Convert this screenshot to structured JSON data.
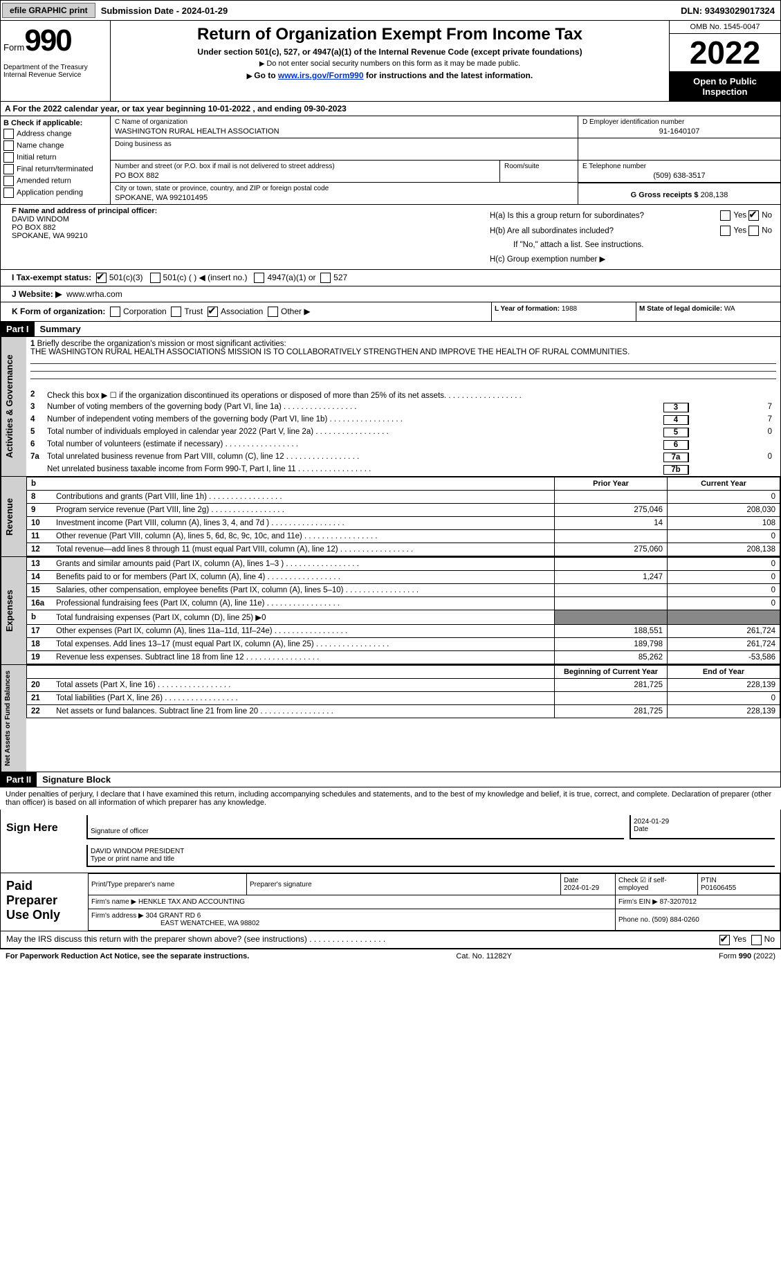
{
  "topbar": {
    "efile": "efile GRAPHIC print",
    "subdate_lbl": "Submission Date - ",
    "subdate": "2024-01-29",
    "dln_lbl": "DLN: ",
    "dln": "93493029017324"
  },
  "hdr": {
    "form": "Form",
    "n990": "990",
    "dept": "Department of the Treasury Internal Revenue Service",
    "title": "Return of Organization Exempt From Income Tax",
    "sub": "Under section 501(c), 527, or 4947(a)(1) of the Internal Revenue Code (except private foundations)",
    "note1": "Do not enter social security numbers on this form as it may be made public.",
    "note2": "Go to ",
    "link": "www.irs.gov/Form990",
    "note3": " for instructions and the latest information.",
    "omb": "OMB No. 1545-0047",
    "year": "2022",
    "pub": "Open to Public Inspection"
  },
  "rowA": {
    "pre": "A For the 2022 calendar year, or tax year beginning ",
    "beg": "10-01-2022",
    "mid": " , and ending ",
    "end": "09-30-2023"
  },
  "colB": {
    "hd": "B Check if applicable:",
    "items": [
      "Address change",
      "Name change",
      "Initial return",
      "Final return/terminated",
      "Amended return",
      "Application pending"
    ]
  },
  "colC": {
    "name_lbl": "C Name of organization",
    "name": "WASHINGTON RURAL HEALTH ASSOCIATION",
    "dba_lbl": "Doing business as",
    "addr_lbl": "Number and street (or P.O. box if mail is not delivered to street address)",
    "room_lbl": "Room/suite",
    "addr": "PO BOX 882",
    "city_lbl": "City or town, state or province, country, and ZIP or foreign postal code",
    "city": "SPOKANE, WA  992101495"
  },
  "colD": {
    "ein_lbl": "D Employer identification number",
    "ein": "91-1640107",
    "tel_lbl": "E Telephone number",
    "tel": "(509) 638-3517",
    "gross_lbl": "G Gross receipts $ ",
    "gross": "208,138"
  },
  "colF": {
    "lbl": "F Name and address of principal officer:",
    "name": "DAVID WINDOM",
    "addr": "PO BOX 882",
    "city": "SPOKANE, WA  99210"
  },
  "colH": {
    "a": "H(a)  Is this a group return for subordinates?",
    "b": "H(b)  Are all subordinates included?",
    "bnote": "If \"No,\" attach a list. See instructions.",
    "c": "H(c)  Group exemption number ▶",
    "yes": "Yes",
    "no": "No"
  },
  "rowI": {
    "lbl": "I  Tax-exempt status:",
    "o1": "501(c)(3)",
    "o2": "501(c) (  ) ◀ (insert no.)",
    "o3": "4947(a)(1) or",
    "o4": "527"
  },
  "rowJ": {
    "lbl": "J  Website: ▶",
    "val": "www.wrha.com"
  },
  "rowK": {
    "lbl": "K Form of organization:",
    "o1": "Corporation",
    "o2": "Trust",
    "o3": "Association",
    "o4": "Other ▶"
  },
  "rowL": {
    "lbl": "L Year of formation: ",
    "val": "1988"
  },
  "rowM": {
    "lbl": "M State of legal domicile: ",
    "val": "WA"
  },
  "part1": {
    "tag": "Part I",
    "title": "Summary"
  },
  "s1": {
    "num": "1",
    "lbl": "Briefly describe the organization's mission or most significant activities:",
    "txt": "THE WASHINGTON RURAL HEALTH ASSOCIATIONS MISSION IS TO COLLABORATIVELY STRENGTHEN AND IMPROVE THE HEALTH OF RURAL COMMUNITIES."
  },
  "act": {
    "tab": "Activities & Governance",
    "rows": [
      {
        "n": "2",
        "t": "Check this box ▶ ☐ if the organization discontinued its operations or disposed of more than 25% of its net assets."
      },
      {
        "n": "3",
        "t": "Number of voting members of the governing body (Part VI, line 1a)",
        "box": "3",
        "v": "7"
      },
      {
        "n": "4",
        "t": "Number of independent voting members of the governing body (Part VI, line 1b)",
        "box": "4",
        "v": "7"
      },
      {
        "n": "5",
        "t": "Total number of individuals employed in calendar year 2022 (Part V, line 2a)",
        "box": "5",
        "v": "0"
      },
      {
        "n": "6",
        "t": "Total number of volunteers (estimate if necessary)",
        "box": "6",
        "v": ""
      },
      {
        "n": "7a",
        "t": "Total unrelated business revenue from Part VIII, column (C), line 12",
        "box": "7a",
        "v": "0"
      },
      {
        "n": "",
        "t": "Net unrelated business taxable income from Form 990-T, Part I, line 11",
        "box": "7b",
        "v": ""
      }
    ]
  },
  "rev": {
    "tab": "Revenue",
    "hd_py": "Prior Year",
    "hd_cy": "Current Year",
    "rows": [
      {
        "n": "8",
        "t": "Contributions and grants (Part VIII, line 1h)",
        "py": "",
        "cy": "0"
      },
      {
        "n": "9",
        "t": "Program service revenue (Part VIII, line 2g)",
        "py": "275,046",
        "cy": "208,030"
      },
      {
        "n": "10",
        "t": "Investment income (Part VIII, column (A), lines 3, 4, and 7d )",
        "py": "14",
        "cy": "108"
      },
      {
        "n": "11",
        "t": "Other revenue (Part VIII, column (A), lines 5, 6d, 8c, 9c, 10c, and 11e)",
        "py": "",
        "cy": "0"
      },
      {
        "n": "12",
        "t": "Total revenue—add lines 8 through 11 (must equal Part VIII, column (A), line 12)",
        "py": "275,060",
        "cy": "208,138"
      }
    ]
  },
  "exp": {
    "tab": "Expenses",
    "rows": [
      {
        "n": "13",
        "t": "Grants and similar amounts paid (Part IX, column (A), lines 1–3 )",
        "py": "",
        "cy": "0"
      },
      {
        "n": "14",
        "t": "Benefits paid to or for members (Part IX, column (A), line 4)",
        "py": "1,247",
        "cy": "0"
      },
      {
        "n": "15",
        "t": "Salaries, other compensation, employee benefits (Part IX, column (A), lines 5–10)",
        "py": "",
        "cy": "0"
      },
      {
        "n": "16a",
        "t": "Professional fundraising fees (Part IX, column (A), line 11e)",
        "py": "",
        "cy": "0"
      },
      {
        "n": "b",
        "t": "Total fundraising expenses (Part IX, column (D), line 25) ▶0",
        "gray": true
      },
      {
        "n": "17",
        "t": "Other expenses (Part IX, column (A), lines 11a–11d, 11f–24e)",
        "py": "188,551",
        "cy": "261,724"
      },
      {
        "n": "18",
        "t": "Total expenses. Add lines 13–17 (must equal Part IX, column (A), line 25)",
        "py": "189,798",
        "cy": "261,724"
      },
      {
        "n": "19",
        "t": "Revenue less expenses. Subtract line 18 from line 12",
        "py": "85,262",
        "cy": "-53,586"
      }
    ]
  },
  "na": {
    "tab": "Net Assets or Fund Balances",
    "hd_py": "Beginning of Current Year",
    "hd_cy": "End of Year",
    "rows": [
      {
        "n": "20",
        "t": "Total assets (Part X, line 16)",
        "py": "281,725",
        "cy": "228,139"
      },
      {
        "n": "21",
        "t": "Total liabilities (Part X, line 26)",
        "py": "",
        "cy": "0"
      },
      {
        "n": "22",
        "t": "Net assets or fund balances. Subtract line 21 from line 20",
        "py": "281,725",
        "cy": "228,139"
      }
    ]
  },
  "part2": {
    "tag": "Part II",
    "title": "Signature Block"
  },
  "decl": "Under penalties of perjury, I declare that I have examined this return, including accompanying schedules and statements, and to the best of my knowledge and belief, it is true, correct, and complete. Declaration of preparer (other than officer) is based on all information of which preparer has any knowledge.",
  "sig": {
    "here": "Sign Here",
    "sig_lbl": "Signature of officer",
    "date": "2024-01-29",
    "date_lbl": "Date",
    "name": "DAVID WINDOM  PRESIDENT",
    "name_lbl": "Type or print name and title"
  },
  "prep": {
    "lbl": "Paid Preparer Use Only",
    "r1_a": "Print/Type preparer's name",
    "r1_b": "Preparer's signature",
    "r1_c": "Date",
    "r1_cv": "2024-01-29",
    "r1_d": "Check ☑ if self-employed",
    "r1_e": "PTIN",
    "r1_ev": "P01606455",
    "r2_a": "Firm's name    ▶ ",
    "r2_av": "HENKLE TAX AND ACCOUNTING",
    "r2_b": "Firm's EIN ▶ ",
    "r2_bv": "87-3207012",
    "r3_a": "Firm's address ▶ ",
    "r3_av": "304 GRANT RD 6",
    "r3_av2": "EAST WENATCHEE, WA  98802",
    "r3_b": "Phone no. ",
    "r3_bv": "(509) 884-0260"
  },
  "discuss": {
    "t": "May the IRS discuss this return with the preparer shown above? (see instructions)",
    "yes": "Yes",
    "no": "No"
  },
  "foot": {
    "l": "For Paperwork Reduction Act Notice, see the separate instructions.",
    "c": "Cat. No. 11282Y",
    "r": "Form 990 (2022)"
  }
}
